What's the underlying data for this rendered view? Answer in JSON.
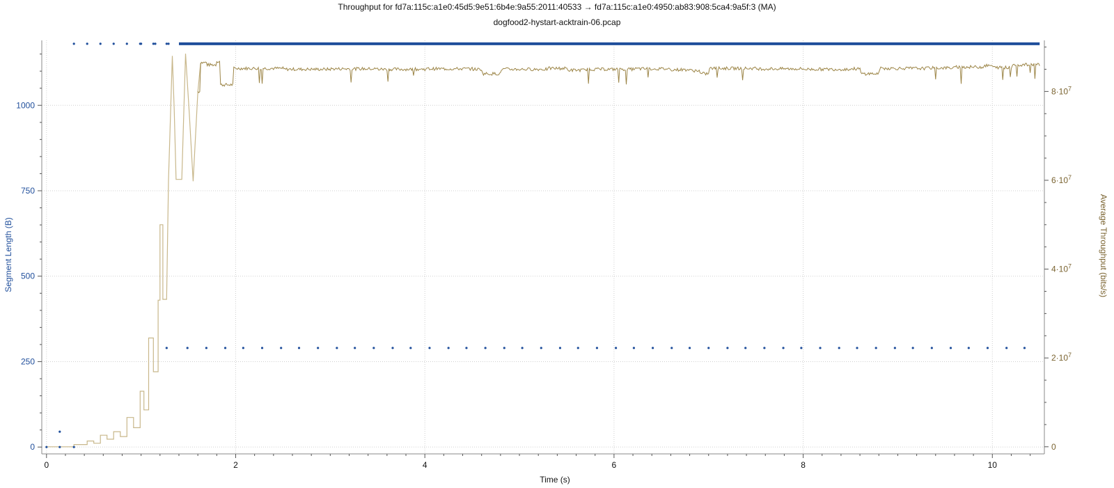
{
  "chart_data": {
    "type": "line",
    "title": "Throughput for fd7a:115c:a1e0:45d5:9e51:6b4e:9a55:2011:40533 → fd7a:115c:a1e0:4950:ab83:908:5ca4:9a5f:3 (MA)",
    "subtitle": "dogfood2-hystart-acktrain-06.pcap",
    "xlabel": "Time (s)",
    "ylabel_left": "Segment Length (B)",
    "ylabel_right": "Average Throughput (bits/s)",
    "xlim": [
      -0.05,
      10.55
    ],
    "ylim_left": [
      -20,
      1190
    ],
    "ylim_right": [
      -1600000,
      91500000
    ],
    "x_ticks": [
      {
        "value": 0,
        "label": "0"
      },
      {
        "value": 2,
        "label": "2"
      },
      {
        "value": 4,
        "label": "4"
      },
      {
        "value": 6,
        "label": "6"
      },
      {
        "value": 8,
        "label": "8"
      },
      {
        "value": 10,
        "label": "10"
      }
    ],
    "y_left_ticks": [
      {
        "value": 0,
        "label": "0"
      },
      {
        "value": 250,
        "label": "250"
      },
      {
        "value": 500,
        "label": "500"
      },
      {
        "value": 750,
        "label": "750"
      },
      {
        "value": 1000,
        "label": "1000"
      }
    ],
    "y_right_ticks": [
      {
        "value": 0,
        "label": "0",
        "exp": ""
      },
      {
        "value": 20000000,
        "label": "2·10",
        "exp": "7"
      },
      {
        "value": 40000000,
        "label": "4·10",
        "exp": "7"
      },
      {
        "value": 60000000,
        "label": "6·10",
        "exp": "7"
      },
      {
        "value": 80000000,
        "label": "8·10",
        "exp": "7"
      }
    ],
    "grid": true,
    "colors": {
      "segment": "#1f4e9b",
      "throughput": "#9c8547",
      "throughput_light": "#c8b78a",
      "left_axis_text": "#1f4e9b",
      "right_axis_text": "#7a6330",
      "grid": "#cfcfcf"
    },
    "series": [
      {
        "name": "Segment Length (B)",
        "axis": "left",
        "style": "points",
        "points": [
          [
            0.0,
            0
          ],
          [
            0.14,
            0
          ],
          [
            0.14,
            45
          ],
          [
            0.29,
            0
          ],
          [
            0.29,
            1180
          ],
          [
            0.43,
            1180
          ],
          [
            0.57,
            1180
          ],
          [
            0.71,
            1180
          ],
          [
            0.85,
            1180
          ],
          [
            0.99,
            1180
          ],
          [
            1.0,
            1180
          ],
          [
            1.13,
            1180
          ],
          [
            1.15,
            1180
          ],
          [
            1.27,
            1180
          ],
          [
            1.29,
            1180
          ],
          [
            1.27,
            290
          ],
          [
            1.49,
            290
          ],
          [
            1.69,
            290
          ],
          [
            1.89,
            290
          ],
          [
            2.08,
            290
          ],
          [
            2.28,
            290
          ],
          [
            2.48,
            290
          ],
          [
            2.67,
            290
          ],
          [
            2.87,
            290
          ],
          [
            3.07,
            290
          ],
          [
            3.26,
            290
          ],
          [
            3.46,
            290
          ],
          [
            3.66,
            290
          ],
          [
            3.85,
            290
          ],
          [
            4.05,
            290
          ],
          [
            4.25,
            290
          ],
          [
            4.44,
            290
          ],
          [
            4.64,
            290
          ],
          [
            4.84,
            290
          ],
          [
            5.03,
            290
          ],
          [
            5.23,
            290
          ],
          [
            5.43,
            290
          ],
          [
            5.62,
            290
          ],
          [
            5.82,
            290
          ],
          [
            6.02,
            290
          ],
          [
            6.21,
            290
          ],
          [
            6.41,
            290
          ],
          [
            6.61,
            290
          ],
          [
            6.8,
            290
          ],
          [
            7.0,
            290
          ],
          [
            7.2,
            290
          ],
          [
            7.39,
            290
          ],
          [
            7.59,
            290
          ],
          [
            7.79,
            290
          ],
          [
            7.98,
            290
          ],
          [
            8.18,
            290
          ],
          [
            8.38,
            290
          ],
          [
            8.57,
            290
          ],
          [
            8.77,
            290
          ],
          [
            8.97,
            290
          ],
          [
            9.16,
            290
          ],
          [
            9.36,
            290
          ],
          [
            9.56,
            290
          ],
          [
            9.75,
            290
          ],
          [
            9.95,
            290
          ],
          [
            10.15,
            290
          ],
          [
            10.34,
            290
          ]
        ],
        "dense_band": {
          "x_start": 1.4,
          "x_end": 10.5,
          "value": 1180
        }
      },
      {
        "name": "Average Throughput (bits/s)",
        "axis": "right",
        "style": "step-line",
        "points": [
          [
            0.0,
            0
          ],
          [
            0.29,
            0
          ],
          [
            0.29,
            500000
          ],
          [
            0.43,
            500000
          ],
          [
            0.43,
            1300000
          ],
          [
            0.5,
            1300000
          ],
          [
            0.5,
            800000
          ],
          [
            0.57,
            800000
          ],
          [
            0.57,
            2600000
          ],
          [
            0.64,
            2600000
          ],
          [
            0.64,
            1700000
          ],
          [
            0.71,
            1700000
          ],
          [
            0.71,
            3400000
          ],
          [
            0.78,
            3400000
          ],
          [
            0.78,
            2300000
          ],
          [
            0.85,
            2300000
          ],
          [
            0.85,
            6600000
          ],
          [
            0.92,
            6600000
          ],
          [
            0.92,
            4300000
          ],
          [
            0.99,
            4300000
          ],
          [
            0.99,
            12500000
          ],
          [
            1.03,
            12500000
          ],
          [
            1.03,
            8300000
          ],
          [
            1.08,
            8300000
          ],
          [
            1.08,
            24500000
          ],
          [
            1.13,
            24500000
          ],
          [
            1.13,
            16900000
          ],
          [
            1.18,
            16900000
          ],
          [
            1.18,
            33000000
          ],
          [
            1.2,
            33000000
          ],
          [
            1.2,
            50000000
          ],
          [
            1.23,
            50000000
          ],
          [
            1.23,
            33200000
          ],
          [
            1.27,
            33200000
          ],
          [
            1.29,
            60000000
          ],
          [
            1.33,
            88000000
          ],
          [
            1.35,
            76000000
          ],
          [
            1.37,
            60200000
          ],
          [
            1.43,
            60200000
          ],
          [
            1.47,
            88500000
          ],
          [
            1.51,
            75000000
          ],
          [
            1.55,
            59800000
          ],
          [
            1.6,
            80000000
          ],
          [
            1.63,
            86500000
          ],
          [
            1.7,
            86000000
          ],
          [
            1.8,
            86800000
          ],
          [
            1.84,
            86500000
          ],
          [
            1.84,
            81500000
          ],
          [
            1.94,
            81500000
          ],
          [
            1.98,
            85200000
          ],
          [
            2.5,
            85000000
          ],
          [
            3.0,
            85100000
          ],
          [
            3.5,
            85000000
          ],
          [
            4.0,
            85100000
          ],
          [
            4.5,
            85000000
          ],
          [
            4.6,
            85000000
          ],
          [
            4.6,
            84000000
          ],
          [
            4.8,
            84000000
          ],
          [
            4.8,
            85000000
          ],
          [
            5.3,
            85200000
          ],
          [
            5.5,
            84800000
          ],
          [
            5.7,
            85000000
          ],
          [
            6.2,
            85100000
          ],
          [
            6.6,
            84900000
          ],
          [
            6.8,
            84700000
          ],
          [
            6.9,
            84000000
          ],
          [
            7.0,
            84100000
          ],
          [
            7.0,
            85200000
          ],
          [
            7.5,
            85100000
          ],
          [
            8.0,
            85000000
          ],
          [
            8.5,
            85100000
          ],
          [
            8.6,
            84000000
          ],
          [
            8.8,
            84100000
          ],
          [
            8.8,
            85200000
          ],
          [
            9.3,
            85300000
          ],
          [
            9.6,
            85500000
          ],
          [
            9.9,
            85800000
          ],
          [
            10.0,
            85400000
          ],
          [
            10.2,
            86000000
          ],
          [
            10.4,
            86100000
          ],
          [
            10.5,
            85900000
          ]
        ]
      }
    ]
  }
}
